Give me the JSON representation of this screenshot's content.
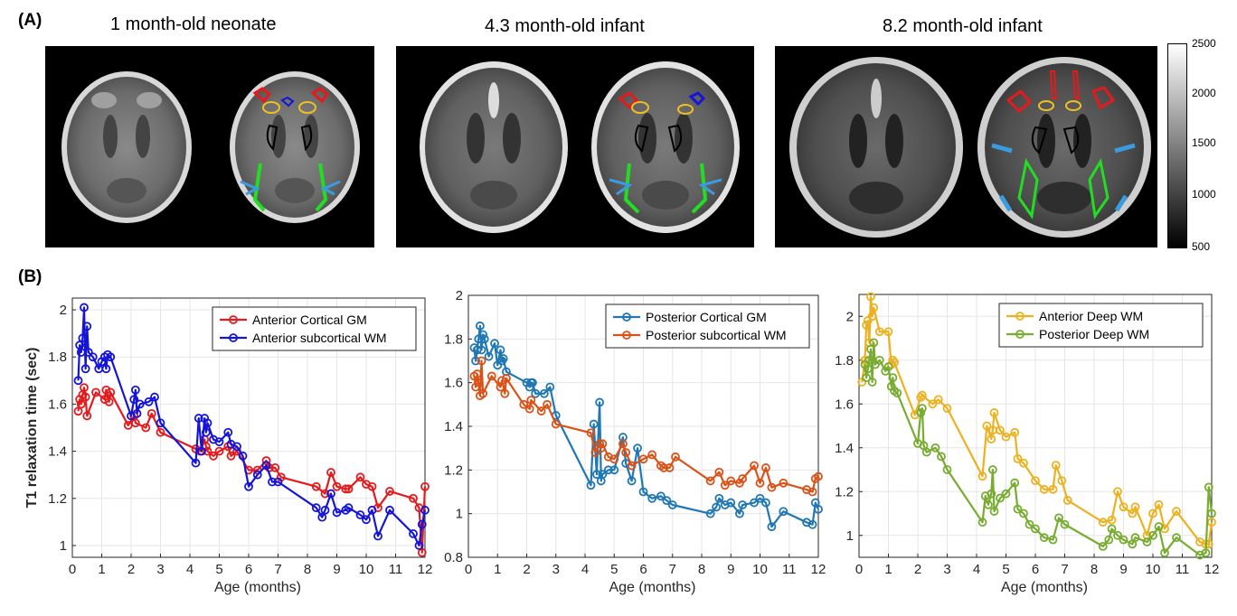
{
  "panels": {
    "a_label": "(A)",
    "b_label": "(B)"
  },
  "scans": [
    {
      "title": "1 month-old neonate"
    },
    {
      "title": "4.3 month-old infant"
    },
    {
      "title": "8.2 month-old infant"
    }
  ],
  "colorbar": {
    "ticks": [
      "2500",
      "2000",
      "1500",
      "1000",
      "500"
    ],
    "min": 500,
    "max": 2500
  },
  "colors": {
    "red": "#e41a1c",
    "blue": "#1515d8",
    "tealblue": "#1f77b4",
    "orange": "#d95319",
    "gold": "#edb120",
    "green": "#77ac30",
    "roi_lightblue": "#3a9be0",
    "roi_green": "#22dd22",
    "roi_yellow": "#f0c020"
  },
  "chart_data": [
    {
      "type": "line",
      "xlabel": "Age (months)",
      "ylabel": "T1 relaxation time (sec)",
      "xlim": [
        0,
        12
      ],
      "ylim": [
        0.95,
        2.05
      ],
      "xticks": [
        0,
        1,
        2,
        3,
        4,
        5,
        6,
        7,
        8,
        9,
        10,
        11,
        12
      ],
      "yticks": [
        1,
        1.2,
        1.4,
        1.6,
        1.8,
        2
      ],
      "legend": "top-right",
      "series": [
        {
          "name": "Anterior Cortical GM",
          "color": "#e41a1c",
          "x": [
            0.2,
            0.25,
            0.3,
            0.35,
            0.4,
            0.45,
            0.5,
            0.8,
            1.1,
            1.15,
            1.25,
            1.3,
            1.9,
            2.1,
            2.15,
            2.5,
            2.7,
            3.0,
            4.2,
            4.35,
            4.5,
            4.55,
            4.6,
            4.8,
            5.0,
            5.3,
            5.4,
            5.6,
            6.0,
            6.3,
            6.6,
            6.7,
            6.9,
            7.1,
            8.3,
            8.6,
            8.8,
            9.0,
            9.3,
            9.4,
            9.8,
            10.0,
            10.2,
            10.4,
            10.8,
            11.6,
            11.8,
            11.9,
            12.0
          ],
          "y": [
            1.57,
            1.62,
            1.6,
            1.64,
            1.67,
            1.63,
            1.55,
            1.65,
            1.62,
            1.66,
            1.61,
            1.65,
            1.51,
            1.55,
            1.52,
            1.5,
            1.56,
            1.48,
            1.41,
            1.4,
            1.45,
            1.42,
            1.4,
            1.38,
            1.4,
            1.42,
            1.38,
            1.4,
            1.32,
            1.32,
            1.36,
            1.33,
            1.33,
            1.29,
            1.25,
            1.22,
            1.31,
            1.25,
            1.24,
            1.24,
            1.29,
            1.26,
            1.25,
            1.16,
            1.23,
            1.2,
            1.16,
            0.97,
            1.25
          ]
        },
        {
          "name": "Anterior subcortical WM",
          "color": "#1515d8",
          "x": [
            0.2,
            0.25,
            0.3,
            0.35,
            0.4,
            0.45,
            0.5,
            0.55,
            0.7,
            0.9,
            1.0,
            1.1,
            1.15,
            1.2,
            1.3,
            2.0,
            2.1,
            2.15,
            2.2,
            2.3,
            2.6,
            2.8,
            3.0,
            4.2,
            4.3,
            4.4,
            4.5,
            4.55,
            4.6,
            4.8,
            5.0,
            5.3,
            5.4,
            5.6,
            5.8,
            6.0,
            6.3,
            6.6,
            6.8,
            7.0,
            8.3,
            8.5,
            8.6,
            8.8,
            9.0,
            9.3,
            9.4,
            9.8,
            10.0,
            10.2,
            10.4,
            10.8,
            11.6,
            11.8,
            11.9,
            12.0
          ],
          "y": [
            1.7,
            1.85,
            1.82,
            1.88,
            2.01,
            1.75,
            1.93,
            1.82,
            1.8,
            1.75,
            1.78,
            1.8,
            1.75,
            1.81,
            1.8,
            1.55,
            1.62,
            1.66,
            1.56,
            1.6,
            1.61,
            1.63,
            1.52,
            1.35,
            1.54,
            1.4,
            1.54,
            1.48,
            1.52,
            1.45,
            1.44,
            1.48,
            1.43,
            1.42,
            1.38,
            1.25,
            1.3,
            1.34,
            1.27,
            1.27,
            1.16,
            1.12,
            1.15,
            1.22,
            1.14,
            1.15,
            1.16,
            1.13,
            1.11,
            1.15,
            1.04,
            1.15,
            1.05,
            1.0,
            1.09,
            1.15
          ]
        }
      ]
    },
    {
      "type": "line",
      "xlabel": "Age (months)",
      "ylabel": "",
      "xlim": [
        0,
        12
      ],
      "ylim": [
        0.8,
        2.0
      ],
      "xticks": [
        0,
        1,
        2,
        3,
        4,
        5,
        6,
        7,
        8,
        9,
        10,
        11,
        12
      ],
      "yticks": [
        0.8,
        1,
        1.2,
        1.4,
        1.6,
        1.8,
        2
      ],
      "legend": "top-right",
      "series": [
        {
          "name": "Posterior Cortical GM",
          "color": "#1f77b4",
          "x": [
            0.2,
            0.25,
            0.3,
            0.35,
            0.4,
            0.45,
            0.5,
            0.55,
            0.7,
            0.9,
            1.0,
            1.1,
            1.15,
            1.2,
            1.3,
            2.0,
            2.1,
            2.15,
            2.2,
            2.3,
            2.6,
            2.8,
            3.0,
            4.2,
            4.3,
            4.4,
            4.5,
            4.55,
            4.6,
            4.8,
            5.0,
            5.3,
            5.4,
            5.6,
            5.8,
            6.0,
            6.3,
            6.6,
            6.8,
            7.0,
            8.3,
            8.5,
            8.6,
            8.8,
            9.0,
            9.3,
            9.4,
            9.8,
            10.0,
            10.2,
            10.4,
            10.8,
            11.6,
            11.8,
            11.9,
            12.0
          ],
          "y": [
            1.76,
            1.7,
            1.75,
            1.8,
            1.86,
            1.75,
            1.82,
            1.8,
            1.72,
            1.78,
            1.68,
            1.75,
            1.7,
            1.71,
            1.65,
            1.6,
            1.58,
            1.6,
            1.6,
            1.55,
            1.55,
            1.58,
            1.45,
            1.13,
            1.41,
            1.18,
            1.51,
            1.15,
            1.18,
            1.2,
            1.2,
            1.35,
            1.23,
            1.15,
            1.3,
            1.1,
            1.07,
            1.08,
            1.06,
            1.04,
            1.0,
            1.03,
            1.07,
            1.04,
            1.05,
            1.0,
            1.04,
            1.05,
            1.07,
            1.05,
            0.94,
            1.01,
            0.96,
            0.95,
            1.05,
            1.02
          ]
        },
        {
          "name": "Posterior subcortical WM",
          "color": "#d95319",
          "x": [
            0.2,
            0.25,
            0.3,
            0.35,
            0.4,
            0.45,
            0.5,
            0.8,
            1.1,
            1.15,
            1.25,
            1.3,
            1.9,
            2.1,
            2.15,
            2.5,
            2.7,
            3.0,
            4.2,
            4.35,
            4.5,
            4.55,
            4.6,
            4.8,
            5.0,
            5.3,
            5.4,
            5.6,
            6.0,
            6.3,
            6.6,
            6.7,
            6.9,
            7.1,
            8.3,
            8.6,
            8.8,
            9.0,
            9.3,
            9.4,
            9.8,
            10.0,
            10.2,
            10.4,
            10.8,
            11.6,
            11.8,
            11.9,
            12.0
          ],
          "y": [
            1.63,
            1.58,
            1.64,
            1.6,
            1.54,
            1.7,
            1.55,
            1.63,
            1.58,
            1.61,
            1.55,
            1.62,
            1.5,
            1.48,
            1.52,
            1.47,
            1.5,
            1.41,
            1.37,
            1.28,
            1.32,
            1.3,
            1.32,
            1.26,
            1.25,
            1.32,
            1.28,
            1.22,
            1.25,
            1.27,
            1.22,
            1.21,
            1.21,
            1.26,
            1.15,
            1.19,
            1.13,
            1.15,
            1.14,
            1.16,
            1.22,
            1.14,
            1.21,
            1.12,
            1.14,
            1.11,
            1.1,
            1.16,
            1.17
          ]
        }
      ]
    },
    {
      "type": "line",
      "xlabel": "Age (months)",
      "ylabel": "",
      "xlim": [
        0,
        12
      ],
      "ylim": [
        0.9,
        2.1
      ],
      "xticks": [
        0,
        1,
        2,
        3,
        4,
        5,
        6,
        7,
        8,
        9,
        10,
        11,
        12
      ],
      "yticks": [
        1,
        1.2,
        1.4,
        1.6,
        1.8,
        2
      ],
      "legend": "top-right",
      "series": [
        {
          "name": "Anterior Deep WM",
          "color": "#edb120",
          "x": [
            0.1,
            0.2,
            0.25,
            0.3,
            0.35,
            0.4,
            0.45,
            0.5,
            0.7,
            1.0,
            1.1,
            1.15,
            1.2,
            1.9,
            2.1,
            2.15,
            2.5,
            2.7,
            3.0,
            4.2,
            4.35,
            4.5,
            4.55,
            4.6,
            4.8,
            5.0,
            5.3,
            5.4,
            5.6,
            6.0,
            6.3,
            6.6,
            6.7,
            6.9,
            7.1,
            8.3,
            8.6,
            8.8,
            9.0,
            9.3,
            9.4,
            9.8,
            10.0,
            10.2,
            10.4,
            10.8,
            11.6,
            11.8,
            11.9,
            12.0
          ],
          "y": [
            1.7,
            1.8,
            1.96,
            1.98,
            1.88,
            2.09,
            2.0,
            2.04,
            1.93,
            1.93,
            1.78,
            1.8,
            1.79,
            1.55,
            1.63,
            1.64,
            1.6,
            1.62,
            1.58,
            1.27,
            1.5,
            1.44,
            1.48,
            1.56,
            1.48,
            1.45,
            1.47,
            1.35,
            1.33,
            1.25,
            1.21,
            1.21,
            1.32,
            1.25,
            1.16,
            1.06,
            1.07,
            1.2,
            1.13,
            1.1,
            1.13,
            1.0,
            1.1,
            1.14,
            1.03,
            1.11,
            0.97,
            0.96,
            0.96,
            1.06
          ]
        },
        {
          "name": "Posterior Deep WM",
          "color": "#77ac30",
          "x": [
            0.2,
            0.25,
            0.3,
            0.35,
            0.4,
            0.45,
            0.5,
            0.55,
            0.7,
            0.9,
            1.0,
            1.1,
            1.15,
            1.2,
            1.3,
            2.0,
            2.1,
            2.15,
            2.2,
            2.3,
            2.6,
            2.8,
            3.0,
            4.2,
            4.3,
            4.4,
            4.5,
            4.55,
            4.6,
            4.8,
            5.0,
            5.3,
            5.4,
            5.6,
            5.8,
            6.0,
            6.3,
            6.6,
            6.8,
            7.0,
            8.3,
            8.5,
            8.6,
            8.8,
            9.0,
            9.3,
            9.4,
            9.8,
            10.0,
            10.2,
            10.4,
            10.8,
            11.6,
            11.8,
            11.9,
            12.0
          ],
          "y": [
            1.78,
            1.72,
            1.76,
            1.8,
            1.85,
            1.7,
            1.88,
            1.78,
            1.8,
            1.75,
            1.77,
            1.68,
            1.72,
            1.66,
            1.65,
            1.42,
            1.56,
            1.58,
            1.41,
            1.38,
            1.4,
            1.36,
            1.3,
            1.06,
            1.18,
            1.14,
            1.19,
            1.3,
            1.11,
            1.17,
            1.19,
            1.24,
            1.12,
            1.1,
            1.05,
            1.03,
            0.99,
            0.98,
            1.08,
            1.05,
            0.95,
            0.98,
            1.03,
            1.0,
            0.98,
            0.96,
            0.99,
            0.97,
            1.0,
            1.04,
            0.92,
            0.99,
            0.91,
            0.92,
            1.22,
            1.1
          ]
        }
      ]
    }
  ]
}
